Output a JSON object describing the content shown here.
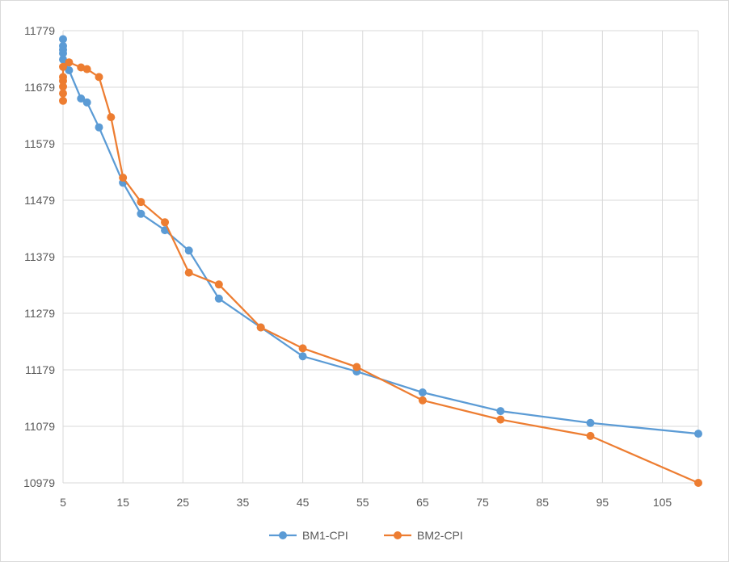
{
  "chart_data": {
    "type": "line",
    "title": "",
    "xlabel": "",
    "ylabel": "",
    "xlim": [
      5,
      111
    ],
    "ylim": [
      10979,
      11779
    ],
    "x_ticks": [
      5,
      15,
      25,
      35,
      45,
      55,
      65,
      75,
      85,
      95,
      105
    ],
    "y_ticks": [
      10979,
      11079,
      11179,
      11279,
      11379,
      11479,
      11579,
      11679,
      11779
    ],
    "x_tick_labels": [
      "5",
      "15",
      "25",
      "35",
      "45",
      "55",
      "65",
      "75",
      "85",
      "95",
      "105"
    ],
    "y_tick_labels": [
      "10979",
      "11079",
      "11179",
      "11279",
      "11379",
      "11479",
      "11579",
      "11679",
      "11779"
    ],
    "grid": true,
    "legend_position": "bottom",
    "series": [
      {
        "name": "BM1-CPI",
        "color": "#5b9bd5",
        "points": [
          [
            5,
            11764
          ],
          [
            5,
            11752
          ],
          [
            5,
            11745
          ],
          [
            5,
            11739
          ],
          [
            5,
            11728
          ],
          [
            6,
            11709
          ],
          [
            8,
            11659
          ],
          [
            9,
            11652
          ],
          [
            11,
            11608
          ],
          [
            15,
            11510
          ],
          [
            18,
            11455
          ],
          [
            22,
            11426
          ],
          [
            26,
            11390
          ],
          [
            31,
            11305
          ],
          [
            38,
            11254
          ],
          [
            45,
            11203
          ],
          [
            54,
            11176
          ],
          [
            65,
            11139
          ],
          [
            78,
            11106
          ],
          [
            93,
            11085
          ],
          [
            111,
            11066
          ]
        ]
      },
      {
        "name": "BM2-CPI",
        "color": "#ed7d31",
        "points": [
          [
            5,
            11655
          ],
          [
            5,
            11668
          ],
          [
            5,
            11680
          ],
          [
            5,
            11690
          ],
          [
            5,
            11697
          ],
          [
            5,
            11715
          ],
          [
            6,
            11723
          ],
          [
            8,
            11714
          ],
          [
            9,
            11711
          ],
          [
            11,
            11697
          ],
          [
            13,
            11626
          ],
          [
            15,
            11519
          ],
          [
            18,
            11476
          ],
          [
            22,
            11440
          ],
          [
            26,
            11351
          ],
          [
            31,
            11330
          ],
          [
            38,
            11254
          ],
          [
            45,
            11217
          ],
          [
            54,
            11184
          ],
          [
            65,
            11125
          ],
          [
            78,
            11091
          ],
          [
            93,
            11062
          ],
          [
            111,
            10979
          ]
        ]
      }
    ]
  }
}
